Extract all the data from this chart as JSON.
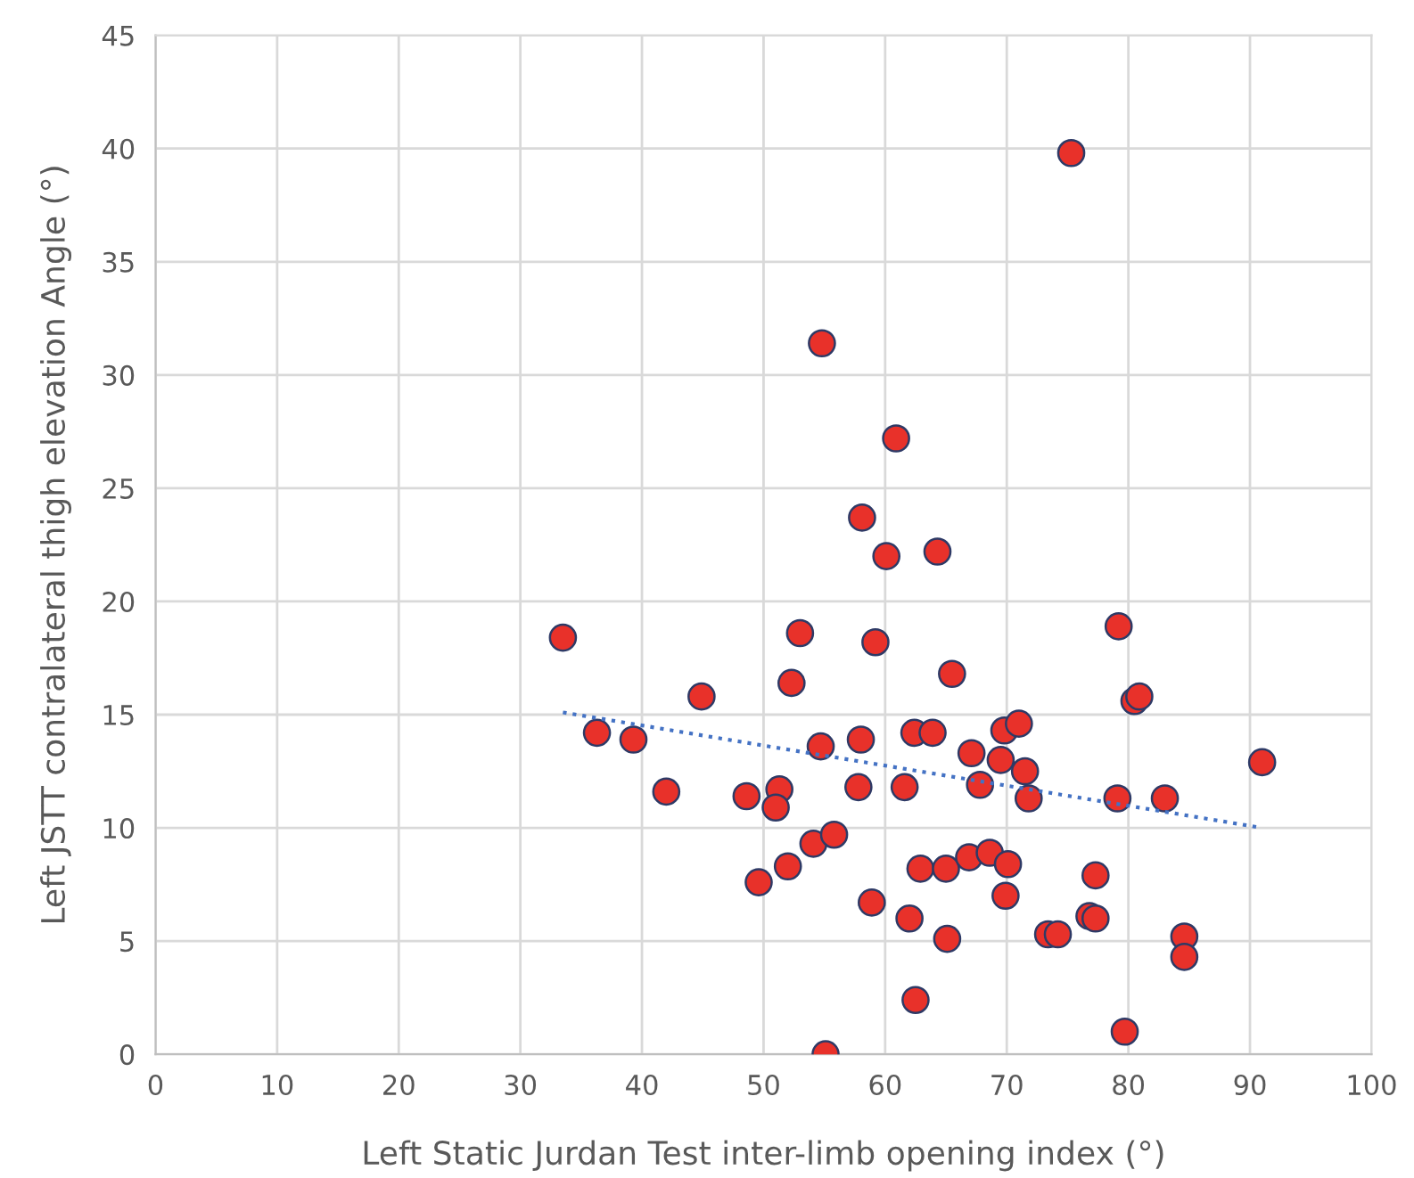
{
  "chart_data": {
    "type": "scatter",
    "xlabel": "Left Static Jurdan Test inter-limb opening index (°)",
    "ylabel": "Left JSTT contralateral thigh elevation Angle (°)",
    "xlim": [
      0,
      100
    ],
    "ylim": [
      0,
      45
    ],
    "xticks": [
      0,
      10,
      20,
      30,
      40,
      50,
      60,
      70,
      80,
      90,
      100
    ],
    "yticks": [
      0,
      5,
      10,
      15,
      20,
      25,
      30,
      35,
      40,
      45
    ],
    "grid": true,
    "marker": "circle",
    "series": [
      {
        "color": "#e8312a",
        "x": [
          33.5,
          36.3,
          39.3,
          42.0,
          44.9,
          53.0,
          59.2,
          52.3,
          65.5,
          79.2,
          80.5,
          80.9,
          62.4,
          63.9,
          69.8,
          71.0,
          54.7,
          58.0,
          67.1,
          69.5,
          71.5,
          91.0,
          48.6,
          51.3,
          51.0,
          57.8,
          61.6,
          67.8,
          71.8,
          79.1,
          83.0,
          54.1,
          55.8,
          52.0,
          49.6,
          62.9,
          65.0,
          66.9,
          68.6,
          70.1,
          69.9,
          77.3,
          58.9,
          62.0,
          65.1,
          73.4,
          74.2,
          76.8,
          77.3,
          84.6,
          84.6,
          62.5,
          79.7,
          55.1,
          75.3,
          54.8,
          60.9,
          58.1,
          60.1,
          64.3
        ],
        "values": [
          18.4,
          14.2,
          13.9,
          11.6,
          15.8,
          18.6,
          18.2,
          16.4,
          16.8,
          18.9,
          15.6,
          15.8,
          14.2,
          14.2,
          14.3,
          14.6,
          13.6,
          13.9,
          13.3,
          13.0,
          12.5,
          12.9,
          11.4,
          11.7,
          10.9,
          11.8,
          11.8,
          11.9,
          11.3,
          11.3,
          11.3,
          9.3,
          9.7,
          8.3,
          7.6,
          8.2,
          8.2,
          8.7,
          8.9,
          8.4,
          7.0,
          7.9,
          6.7,
          6.0,
          5.1,
          5.3,
          5.3,
          6.1,
          6.0,
          5.2,
          4.3,
          2.4,
          1.0,
          0.0,
          39.8,
          31.4,
          27.2,
          23.7,
          22.0,
          22.2
        ]
      },
      {
        "type": "line",
        "color": "#4472c4",
        "line_style": "dotted",
        "marker": "none",
        "x": [
          33.5,
          91.0
        ],
        "values": [
          15.1,
          10.0
        ]
      }
    ]
  }
}
